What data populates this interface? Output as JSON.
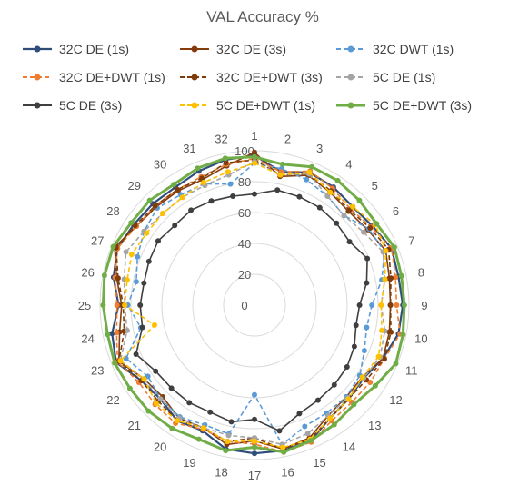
{
  "chart_data": {
    "type": "radar",
    "title": "VAL Accuracy %",
    "categories": [
      "1",
      "2",
      "3",
      "4",
      "5",
      "6",
      "7",
      "8",
      "9",
      "10",
      "11",
      "12",
      "13",
      "14",
      "15",
      "16",
      "17",
      "18",
      "19",
      "20",
      "21",
      "22",
      "23",
      "24",
      "25",
      "26",
      "27",
      "28",
      "29",
      "30",
      "31",
      "32"
    ],
    "radial_ticks": [
      0,
      20,
      40,
      60,
      80,
      100
    ],
    "rlim": [
      0,
      100
    ],
    "grid": true,
    "legend_position": "top",
    "series": [
      {
        "name": "32C DE (1s)",
        "color": "#2e4d7b",
        "dash": "solid",
        "width": 2.2,
        "values": [
          97,
          88,
          93,
          92,
          90,
          92,
          96,
          95,
          96,
          95,
          90,
          85,
          86,
          88,
          95,
          96,
          96,
          95,
          88,
          90,
          86,
          88,
          97,
          94,
          88,
          93,
          96,
          94,
          93,
          92,
          94,
          96
        ]
      },
      {
        "name": "32C DE (3s)",
        "color": "#843c0c",
        "dash": "solid",
        "width": 1.6,
        "values": [
          99,
          85,
          91,
          88,
          86,
          88,
          92,
          89,
          88,
          89,
          90,
          84,
          84,
          86,
          93,
          95,
          88,
          92,
          86,
          88,
          84,
          86,
          95,
          89,
          86,
          91,
          98,
          92,
          90,
          89,
          88,
          92
        ]
      },
      {
        "name": "32C DWT (1s)",
        "color": "#5b9bd5",
        "dash": "dash",
        "width": 1.6,
        "values": [
          92,
          90,
          88,
          85,
          82,
          89,
          91,
          84,
          76,
          74,
          77,
          82,
          84,
          84,
          85,
          92,
          58,
          85,
          84,
          87,
          86,
          83,
          90,
          75,
          82,
          78,
          82,
          86,
          89,
          86,
          85,
          80
        ]
      },
      {
        "name": "32C DE+DWT (1s)",
        "color": "#ed7d31",
        "dash": "dash",
        "width": 1.6,
        "values": [
          95,
          88,
          94,
          91,
          88,
          91,
          96,
          93,
          92,
          96,
          91,
          90,
          89,
          90,
          96,
          97,
          90,
          90,
          87,
          92,
          91,
          90,
          96,
          91,
          89,
          92,
          96,
          92,
          91,
          90,
          90,
          93
        ]
      },
      {
        "name": "32C DE+DWT (3s)",
        "color": "#7f3b08",
        "dash": "dash",
        "width": 1.6,
        "values": [
          94,
          86,
          92,
          89,
          87,
          90,
          94,
          90,
          88,
          90,
          91,
          87,
          86,
          88,
          94,
          95,
          86,
          90,
          86,
          90,
          88,
          88,
          95,
          86,
          85,
          90,
          97,
          93,
          91,
          90,
          89,
          94
        ]
      },
      {
        "name": "5C DE (1s)",
        "color": "#a5a5a5",
        "dash": "dash",
        "width": 1.6,
        "values": [
          93,
          86,
          92,
          85,
          82,
          85,
          90,
          86,
          82,
          86,
          88,
          85,
          85,
          86,
          90,
          92,
          86,
          86,
          86,
          88,
          86,
          86,
          94,
          84,
          84,
          86,
          90,
          86,
          84,
          84,
          84,
          86
        ]
      },
      {
        "name": "5C DE (3s)",
        "color": "#3f3f3f",
        "dash": "solid",
        "width": 1.6,
        "values": [
          72,
          76,
          76,
          76,
          75,
          74,
          79,
          74,
          68,
          67,
          70,
          72,
          73,
          74,
          76,
          83,
          74,
          77,
          75,
          76,
          76,
          77,
          83,
          74,
          74,
          73,
          74,
          75,
          73,
          74,
          73,
          72
        ]
      },
      {
        "name": "5C DE+DWT (1s)",
        "color": "#ffc000",
        "dash": "dash",
        "width": 1.6,
        "values": [
          92,
          86,
          93,
          88,
          90,
          94,
          92,
          86,
          82,
          84,
          87,
          84,
          86,
          88,
          94,
          94,
          88,
          90,
          86,
          90,
          90,
          86,
          94,
          66,
          84,
          84,
          86,
          84,
          84,
          84,
          86,
          88
        ]
      },
      {
        "name": "5C DE+DWT (3s)",
        "color": "#70ad47",
        "dash": "solid",
        "width": 3,
        "values": [
          96,
          93,
          97,
          97,
          96,
          95,
          98,
          97,
          97,
          98,
          99,
          94,
          91,
          93,
          95,
          97,
          92,
          96,
          94,
          96,
          97,
          97,
          98,
          97,
          98,
          99,
          99,
          96,
          96,
          94,
          96,
          97
        ]
      }
    ]
  }
}
